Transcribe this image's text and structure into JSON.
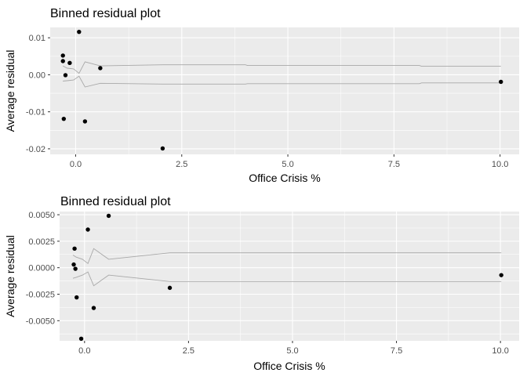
{
  "chart_data": [
    {
      "type": "scatter",
      "title": "Binned residual plot",
      "xlabel": "Office Crisis %",
      "ylabel": "Average residual",
      "xlim": [
        -0.6,
        10.45
      ],
      "ylim": [
        -0.0215,
        0.0128
      ],
      "x_ticks": [
        0,
        2.5,
        5,
        7.5,
        10
      ],
      "x_tick_labels": [
        "0.0",
        "2.5",
        "5.0",
        "7.5",
        "10.0"
      ],
      "y_ticks": [
        -0.02,
        -0.01,
        0,
        0.01
      ],
      "y_tick_labels": [
        "-0.02",
        "-0.01",
        "0.00",
        "0.01"
      ],
      "grid": true,
      "points": [
        {
          "x": 0.08,
          "y": 0.0116
        },
        {
          "x": -0.3,
          "y": 0.0052
        },
        {
          "x": -0.3,
          "y": 0.0037
        },
        {
          "x": -0.14,
          "y": 0.0032
        },
        {
          "x": -0.24,
          "y": -0.0001
        },
        {
          "x": 0.58,
          "y": 0.0018
        },
        {
          "x": -0.28,
          "y": -0.0119
        },
        {
          "x": 0.22,
          "y": -0.0126
        },
        {
          "x": 2.05,
          "y": -0.0199
        },
        {
          "x": 10.02,
          "y": -0.0019
        }
      ],
      "band_upper": [
        {
          "x": -0.3,
          "y": 0.0024
        },
        {
          "x": -0.2,
          "y": 0.0018
        },
        {
          "x": -0.05,
          "y": 0.0016
        },
        {
          "x": 0.08,
          "y": 0.0004
        },
        {
          "x": 0.22,
          "y": 0.0035
        },
        {
          "x": 0.58,
          "y": 0.0024
        },
        {
          "x": 2.05,
          "y": 0.0027
        },
        {
          "x": 4.0,
          "y": 0.0027
        },
        {
          "x": 4.05,
          "y": 0.0025
        },
        {
          "x": 8.1,
          "y": 0.0025
        },
        {
          "x": 8.15,
          "y": 0.0023
        },
        {
          "x": 10.02,
          "y": 0.0023
        }
      ],
      "band_lower": [
        {
          "x": -0.3,
          "y": -0.0017
        },
        {
          "x": -0.2,
          "y": -0.0016
        },
        {
          "x": -0.05,
          "y": -0.0014
        },
        {
          "x": 0.08,
          "y": -0.0004
        },
        {
          "x": 0.22,
          "y": -0.0033
        },
        {
          "x": 0.58,
          "y": -0.0023
        },
        {
          "x": 2.05,
          "y": -0.0025
        },
        {
          "x": 4.0,
          "y": -0.0025
        },
        {
          "x": 4.05,
          "y": -0.0024
        },
        {
          "x": 8.1,
          "y": -0.0024
        },
        {
          "x": 8.15,
          "y": -0.0022
        },
        {
          "x": 10.02,
          "y": -0.0022
        }
      ]
    },
    {
      "type": "scatter",
      "title": "Binned residual plot",
      "xlabel": "Office Crisis %",
      "ylabel": "Average residual",
      "xlim": [
        -0.6,
        10.45
      ],
      "ylim": [
        -0.0069,
        0.0053
      ],
      "x_ticks": [
        0,
        2.5,
        5,
        7.5,
        10
      ],
      "x_tick_labels": [
        "0.0",
        "2.5",
        "5.0",
        "7.5",
        "10.0"
      ],
      "y_ticks": [
        -0.005,
        -0.0025,
        0,
        0.0025,
        0.005
      ],
      "y_tick_labels": [
        "-0.0050",
        "-0.0025",
        "0.0000",
        "0.0025",
        "0.0050"
      ],
      "grid": true,
      "points": [
        {
          "x": 0.58,
          "y": 0.0049
        },
        {
          "x": 0.08,
          "y": 0.0036
        },
        {
          "x": -0.24,
          "y": 0.0018
        },
        {
          "x": -0.26,
          "y": 0.0003
        },
        {
          "x": -0.22,
          "y": -0.0001
        },
        {
          "x": -0.19,
          "y": -0.0028
        },
        {
          "x": 0.22,
          "y": -0.0038
        },
        {
          "x": 2.05,
          "y": -0.0019
        },
        {
          "x": -0.08,
          "y": -0.0067
        },
        {
          "x": 10.02,
          "y": -0.0007
        }
      ],
      "band_upper": [
        {
          "x": -0.28,
          "y": 0.0012
        },
        {
          "x": -0.2,
          "y": 0.001
        },
        {
          "x": -0.05,
          "y": 0.0008
        },
        {
          "x": 0.08,
          "y": 0.0004
        },
        {
          "x": 0.22,
          "y": 0.0018
        },
        {
          "x": 0.58,
          "y": 0.0008
        },
        {
          "x": 2.05,
          "y": 0.0014
        },
        {
          "x": 6.0,
          "y": 0.0014
        },
        {
          "x": 6.05,
          "y": 0.0014
        },
        {
          "x": 10.02,
          "y": 0.0014
        }
      ],
      "band_lower": [
        {
          "x": -0.28,
          "y": -0.001
        },
        {
          "x": -0.2,
          "y": -0.0009
        },
        {
          "x": -0.05,
          "y": -0.0007
        },
        {
          "x": 0.08,
          "y": -0.0004
        },
        {
          "x": 0.22,
          "y": -0.0017
        },
        {
          "x": 0.58,
          "y": -0.0007
        },
        {
          "x": 2.05,
          "y": -0.0013
        },
        {
          "x": 6.0,
          "y": -0.0013
        },
        {
          "x": 6.05,
          "y": -0.0013
        },
        {
          "x": 10.02,
          "y": -0.0013
        }
      ]
    }
  ]
}
